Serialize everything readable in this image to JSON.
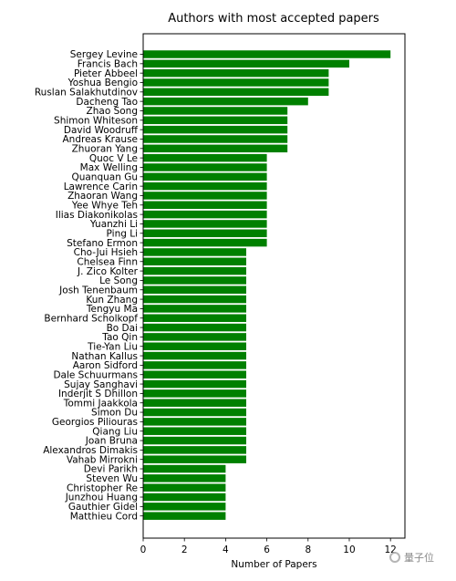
{
  "chart_data": {
    "type": "bar",
    "orientation": "horizontal",
    "title": "Authors with most accepted papers",
    "xlabel": "Number of Papers",
    "ylabel": "",
    "xlim": [
      0,
      12.7
    ],
    "xticks": [
      0,
      2,
      4,
      6,
      8,
      10,
      12
    ],
    "bar_color": "#008000",
    "grid": false,
    "categories": [
      "Sergey Levine",
      "Francis Bach",
      "Pieter Abbeel",
      "Yoshua Bengio",
      "Ruslan Salakhutdinov",
      "Dacheng Tao",
      "Zhao Song",
      "Shimon Whiteson",
      "David Woodruff",
      "Andreas Krause",
      "Zhuoran Yang",
      "Quoc V Le",
      "Max Welling",
      "Quanquan Gu",
      "Lawrence Carin",
      "Zhaoran Wang",
      "Yee Whye Teh",
      "Ilias Diakonikolas",
      "Yuanzhi Li",
      "Ping Li",
      "Stefano Ermon",
      "Cho-Jui Hsieh",
      "Chelsea Finn",
      "J. Zico Kolter",
      "Le Song",
      "Josh Tenenbaum",
      "Kun Zhang",
      "Tengyu Ma",
      "Bernhard Scholkopf",
      "Bo Dai",
      "Tao Qin",
      "Tie-Yan Liu",
      "Nathan Kallus",
      "Aaron Sidford",
      "Dale Schuurmans",
      "Sujay Sanghavi",
      "Inderjit S Dhillon",
      "Tommi Jaakkola",
      "Simon Du",
      "Georgios Piliouras",
      "Qiang Liu",
      "Joan Bruna",
      "Alexandros Dimakis",
      "Vahab Mirrokni",
      "Devi Parikh",
      "Steven Wu",
      "Christopher Re",
      "Junzhou Huang",
      "Gauthier Gidel",
      "Matthieu Cord"
    ],
    "values": [
      12,
      10,
      9,
      9,
      9,
      8,
      7,
      7,
      7,
      7,
      7,
      6,
      6,
      6,
      6,
      6,
      6,
      6,
      6,
      6,
      6,
      5,
      5,
      5,
      5,
      5,
      5,
      5,
      5,
      5,
      5,
      5,
      5,
      5,
      5,
      5,
      5,
      5,
      5,
      5,
      5,
      5,
      5,
      5,
      4,
      4,
      4,
      4,
      4,
      4
    ]
  },
  "watermark": {
    "text": "量子位",
    "icon": "qbit-logo-icon"
  }
}
